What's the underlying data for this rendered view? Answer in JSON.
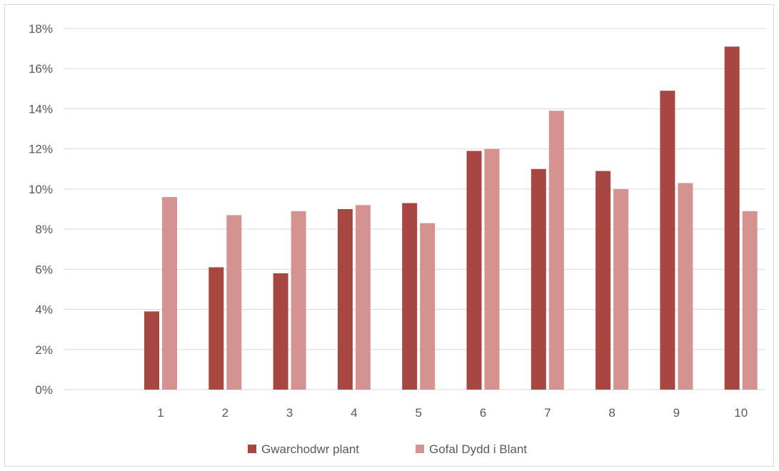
{
  "chart_data": {
    "type": "bar",
    "title": "",
    "xlabel": "",
    "ylabel": "",
    "categories": [
      "1",
      "2",
      "3",
      "4",
      "5",
      "6",
      "7",
      "8",
      "9",
      "10"
    ],
    "series": [
      {
        "name": "Gwarchodwr plant",
        "color": "#a84642",
        "values": [
          3.9,
          6.1,
          5.8,
          9.0,
          9.3,
          11.9,
          11.0,
          10.9,
          14.9,
          17.1
        ]
      },
      {
        "name": "Gofal Dydd i Blant",
        "color": "#d49391",
        "values": [
          9.6,
          8.7,
          8.9,
          9.2,
          8.3,
          12.0,
          13.9,
          10.0,
          10.3,
          8.9
        ]
      }
    ],
    "ylim": [
      0,
      18
    ],
    "yticks": [
      "0%",
      "2%",
      "4%",
      "6%",
      "8%",
      "10%",
      "12%",
      "14%",
      "16%",
      "18%"
    ],
    "grid": true,
    "legend_position": "bottom"
  }
}
